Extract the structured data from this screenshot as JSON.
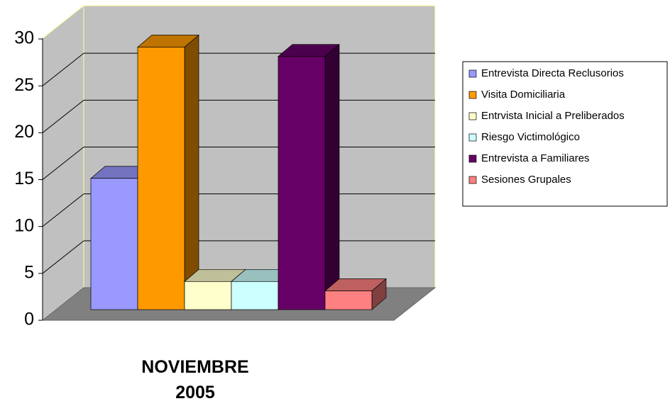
{
  "chart_data": {
    "type": "bar3d",
    "categories": [
      "NOVIEMBRE 2005"
    ],
    "series": [
      {
        "name": "Entrevista Directa Reclusorios",
        "color": "#9999ff",
        "values": [
          14
        ]
      },
      {
        "name": "Visita Domiciliaria",
        "color": "#ff9900",
        "values": [
          28
        ]
      },
      {
        "name": "Entrvista Inicial a Preliberados",
        "color": "#ffffcc",
        "values": [
          3
        ]
      },
      {
        "name": "Riesgo Victimológico",
        "color": "#ccffff",
        "values": [
          3
        ]
      },
      {
        "name": "Entrevista a Familiares",
        "color": "#660066",
        "values": [
          27
        ]
      },
      {
        "name": "Sesiones Grupales",
        "color": "#ff8080",
        "values": [
          2
        ]
      }
    ],
    "ylim": [
      0,
      30
    ],
    "yticks": [
      0,
      5,
      10,
      15,
      20,
      25,
      30
    ],
    "grid": true,
    "legend": "right"
  }
}
